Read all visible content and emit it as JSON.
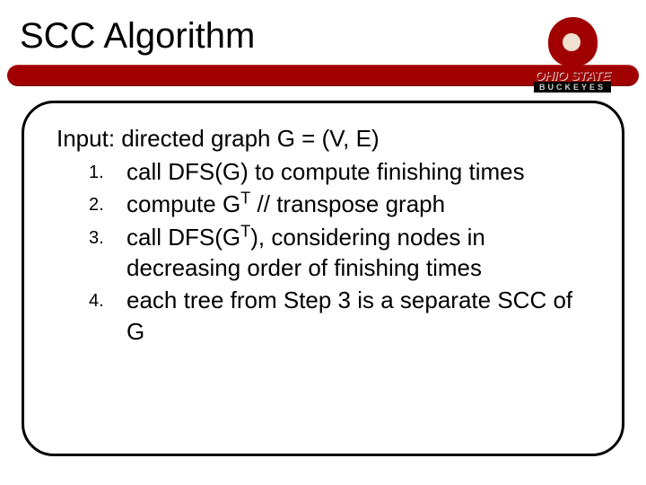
{
  "title": "SCC Algorithm",
  "logo": {
    "main": "OHIO STATE",
    "sub": "BUCKEYES"
  },
  "content": {
    "input_line": "Input:  directed graph G = (V, E)",
    "steps": [
      {
        "num": "1.",
        "text": "call DFS(G) to compute finishing times"
      },
      {
        "num": "2.",
        "text_html": "compute G<sup>T</sup> // transpose graph"
      },
      {
        "num": "3.",
        "text_html": "call DFS(G<sup>T</sup>), considering nodes in decreasing order of finishing times"
      },
      {
        "num": "4.",
        "text": "each tree from Step 3 is a separate SCC of G"
      }
    ]
  },
  "colors": {
    "brand_red": "#a00000",
    "black": "#000000",
    "white": "#ffffff"
  }
}
